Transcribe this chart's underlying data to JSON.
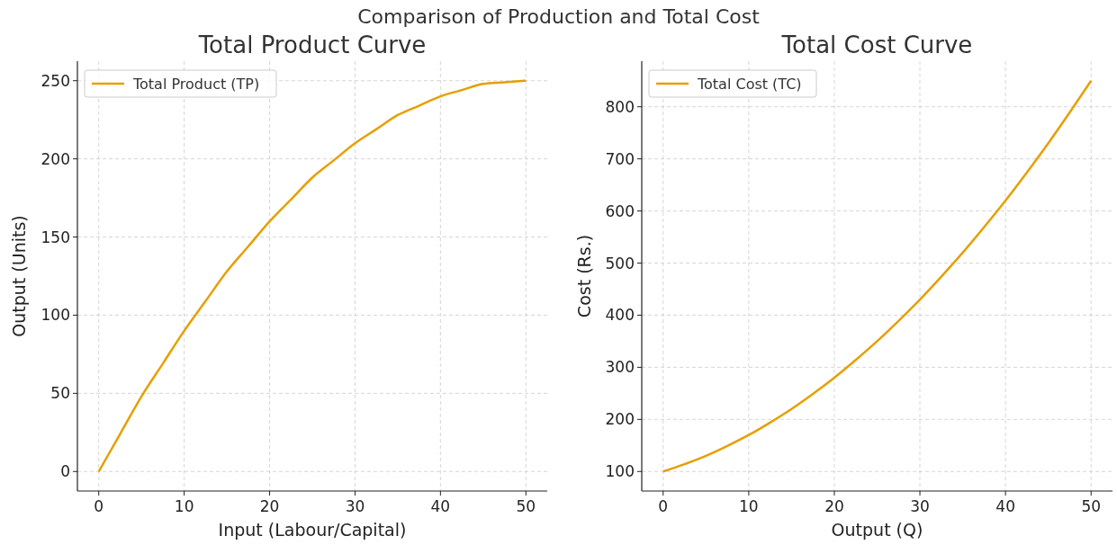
{
  "chart_data": [
    {
      "type": "line",
      "title": "Total Product Curve",
      "subtitle": "Comparison of Production and Total Cost",
      "xlabel": "Input (Labour/Capital)",
      "ylabel": "Output (Units)",
      "x": [
        0,
        2.5,
        5,
        7.5,
        10,
        12.5,
        15,
        17.5,
        20,
        22.5,
        25,
        27.5,
        30,
        32.5,
        35,
        37.5,
        40,
        42.5,
        45,
        47.5,
        50
      ],
      "series": [
        {
          "name": "Total Product (TP)",
          "color": "#e69f00",
          "values": [
            0,
            24,
            48,
            69,
            90,
            109,
            128,
            144,
            160,
            174,
            188,
            199,
            210,
            219,
            228,
            234,
            240,
            244,
            248,
            249,
            250
          ]
        }
      ],
      "xlim": [
        -2.5,
        52.5
      ],
      "xticks": [
        0,
        10,
        20,
        30,
        40,
        50
      ],
      "ylim": [
        -12.5,
        262.5
      ],
      "yticks": [
        0,
        50,
        100,
        150,
        200,
        250
      ],
      "grid": true,
      "legend": "top left",
      "marker": "none",
      "line_style": "solid"
    },
    {
      "type": "line",
      "title": "Total Cost Curve",
      "xlabel": "Output (Q)",
      "ylabel": "Cost (Rs.)",
      "x": [
        0,
        2.5,
        5,
        7.5,
        10,
        12.5,
        15,
        17.5,
        20,
        22.5,
        25,
        27.5,
        30,
        32.5,
        35,
        37.5,
        40,
        42.5,
        45,
        47.5,
        50
      ],
      "series": [
        {
          "name": "Total Cost (TC)",
          "color": "#e69f00",
          "values": [
            100,
            114,
            130,
            149,
            170,
            194,
            220,
            249,
            280,
            314,
            350,
            389,
            430,
            474,
            520,
            569,
            620,
            674,
            730,
            789,
            850
          ]
        }
      ],
      "xlim": [
        -2.5,
        52.5
      ],
      "xticks": [
        0,
        10,
        20,
        30,
        40,
        50
      ],
      "ylim": [
        62.5,
        887.5
      ],
      "yticks": [
        100,
        200,
        300,
        400,
        500,
        600,
        700,
        800
      ],
      "grid": true,
      "legend": "top left",
      "marker": "none",
      "line_style": "solid"
    }
  ]
}
